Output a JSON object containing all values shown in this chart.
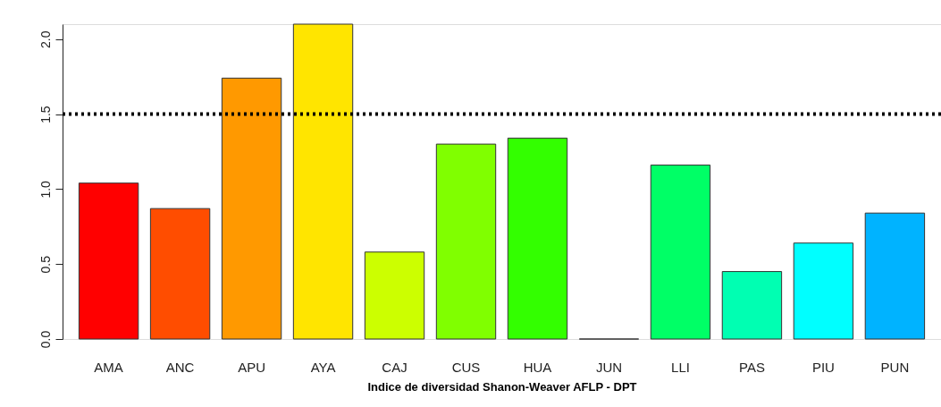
{
  "chart_data": {
    "type": "bar",
    "xlabel": "Indice de diversidad Shanon-Weaver AFLP - DPT",
    "categories": [
      "AMA",
      "ANC",
      "APU",
      "AYA",
      "CAJ",
      "CUS",
      "HUA",
      "JUN",
      "LLI",
      "PAS",
      "PIU",
      "PUN"
    ],
    "values": [
      1.04,
      0.87,
      1.74,
      2.1,
      0.58,
      1.3,
      1.34,
      0,
      1.16,
      0.45,
      0.64,
      0.84
    ],
    "colors": [
      "#ff0000",
      "#ff4d00",
      "#ff9900",
      "#ffe500",
      "#ccff00",
      "#80ff00",
      "#33ff00",
      "#333333",
      "#00ff66",
      "#00ffb2",
      "#00ffff",
      "#00b3ff"
    ],
    "ylim": [
      0,
      2.1
    ],
    "yticks": [
      {
        "value": 0,
        "label": "0.0"
      },
      0.5,
      {
        "value": 1,
        "label": "1.0"
      },
      1.5,
      {
        "value": 2,
        "label": "2.0"
      }
    ],
    "ref_lines": [
      {
        "axis": "y",
        "value": 1.5,
        "line_style": "dotted",
        "color": "#000000"
      }
    ],
    "grid": false
  }
}
